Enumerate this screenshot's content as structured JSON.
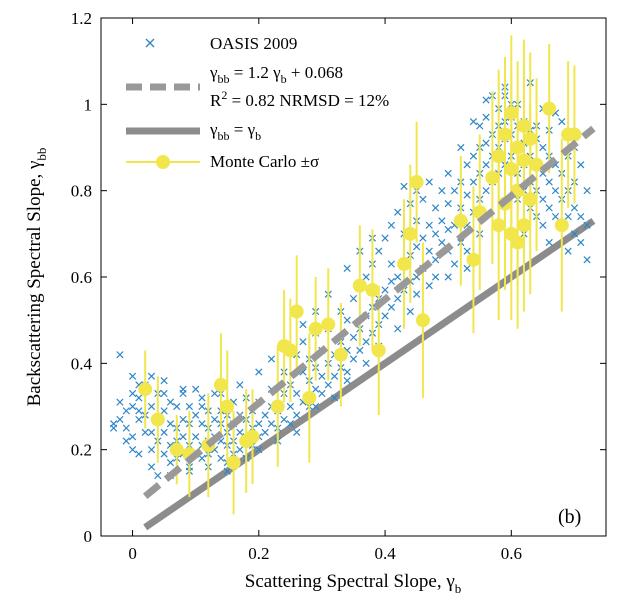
{
  "chart_data": {
    "type": "scatter",
    "panel_label": "(b)",
    "xlabel": {
      "main": "Scattering Spectral Slope, γ",
      "sub": "b"
    },
    "ylabel": {
      "main": "Backscattering Spectral Slope, γ",
      "sub": "bb"
    },
    "xlim": [
      -0.05,
      0.75
    ],
    "ylim": [
      0,
      1.2
    ],
    "xticks": [
      0,
      0.2,
      0.4,
      0.6
    ],
    "xtick_labels": [
      "0",
      "0.2",
      "0.4",
      "0.6"
    ],
    "yticks": [
      0,
      0.2,
      0.4,
      0.6,
      0.8,
      1.0,
      1.2
    ],
    "ytick_labels": [
      "0",
      "0.2",
      "0.4",
      "0.6",
      "0.8",
      "1",
      "1.2"
    ],
    "grid": false,
    "legend_position": "top-left",
    "colors": {
      "oasis": "#2e86c8",
      "fit": "#999999",
      "one_to_one": "#8c8c8c",
      "monte_carlo": "#f2e64d"
    },
    "legend": {
      "oasis": "OASIS 2009",
      "fit_1": "γ",
      "fit_1_sub": "bb",
      "fit_2": " = 1.2 γ",
      "fit_2_sub": "b",
      "fit_3": " + 0.068",
      "r2_1": "R",
      "r2_sup": "2",
      "r2_2": " = 0.82 NRMSD = 12%",
      "one_1": "γ",
      "one_1_sub": "bb",
      "one_2": " = γ",
      "one_2_sub": "b",
      "mc": "Monte Carlo ±σ"
    },
    "fit_line": {
      "slope": 1.2,
      "intercept": 0.068,
      "x": [
        0.02,
        0.73
      ]
    },
    "one_to_one": {
      "x": [
        0.02,
        0.73
      ]
    },
    "oasis_points": [
      [
        -0.03,
        0.26
      ],
      [
        -0.02,
        0.31
      ],
      [
        -0.01,
        0.29
      ],
      [
        -0.02,
        0.42
      ],
      [
        -0.01,
        0.25
      ],
      [
        0.0,
        0.37
      ],
      [
        0.0,
        0.3
      ],
      [
        0.01,
        0.27
      ],
      [
        0.0,
        0.23
      ],
      [
        0.01,
        0.35
      ],
      [
        -0.02,
        0.27
      ],
      [
        -0.01,
        0.22
      ],
      [
        0.0,
        0.33
      ],
      [
        0.01,
        0.29
      ],
      [
        0.0,
        0.2
      ],
      [
        0.02,
        0.28
      ],
      [
        0.01,
        0.32
      ],
      [
        -0.03,
        0.25
      ],
      [
        0.02,
        0.24
      ],
      [
        0.01,
        0.19
      ],
      [
        0.02,
        0.35
      ],
      [
        0.03,
        0.3
      ],
      [
        0.03,
        0.24
      ],
      [
        0.03,
        0.2
      ],
      [
        0.03,
        0.16
      ],
      [
        0.04,
        0.27
      ],
      [
        0.04,
        0.22
      ],
      [
        0.04,
        0.33
      ],
      [
        0.04,
        0.14
      ],
      [
        0.05,
        0.29
      ],
      [
        0.05,
        0.24
      ],
      [
        0.05,
        0.19
      ],
      [
        0.05,
        0.36
      ],
      [
        0.06,
        0.26
      ],
      [
        0.06,
        0.31
      ],
      [
        0.06,
        0.21
      ],
      [
        0.06,
        0.17
      ],
      [
        0.07,
        0.25
      ],
      [
        0.07,
        0.3
      ],
      [
        0.07,
        0.22
      ],
      [
        0.07,
        0.18
      ],
      [
        0.08,
        0.27
      ],
      [
        0.08,
        0.23
      ],
      [
        0.08,
        0.33
      ],
      [
        0.08,
        0.19
      ],
      [
        0.09,
        0.26
      ],
      [
        0.09,
        0.21
      ],
      [
        0.09,
        0.3
      ],
      [
        0.09,
        0.16
      ],
      [
        0.1,
        0.28
      ],
      [
        0.1,
        0.23
      ],
      [
        0.1,
        0.19
      ],
      [
        0.1,
        0.34
      ],
      [
        0.11,
        0.26
      ],
      [
        0.11,
        0.21
      ],
      [
        0.11,
        0.3
      ],
      [
        0.11,
        0.18
      ],
      [
        0.12,
        0.25
      ],
      [
        0.12,
        0.22
      ],
      [
        0.12,
        0.29
      ],
      [
        0.12,
        0.19
      ],
      [
        0.13,
        0.27
      ],
      [
        0.13,
        0.23
      ],
      [
        0.13,
        0.2
      ],
      [
        0.13,
        0.33
      ],
      [
        0.14,
        0.26
      ],
      [
        0.14,
        0.22
      ],
      [
        0.14,
        0.29
      ],
      [
        0.14,
        0.18
      ],
      [
        0.15,
        0.24
      ],
      [
        0.15,
        0.21
      ],
      [
        0.15,
        0.28
      ],
      [
        0.15,
        0.17
      ],
      [
        0.16,
        0.26
      ],
      [
        0.16,
        0.22
      ],
      [
        0.16,
        0.31
      ],
      [
        0.16,
        0.19
      ],
      [
        0.17,
        0.24
      ],
      [
        0.17,
        0.28
      ],
      [
        0.17,
        0.2
      ],
      [
        0.18,
        0.27
      ],
      [
        0.18,
        0.23
      ],
      [
        0.18,
        0.32
      ],
      [
        0.19,
        0.25
      ],
      [
        0.19,
        0.21
      ],
      [
        0.19,
        0.29
      ],
      [
        0.2,
        0.26
      ],
      [
        0.2,
        0.23
      ],
      [
        0.2,
        0.31
      ],
      [
        0.21,
        0.28
      ],
      [
        0.21,
        0.24
      ],
      [
        0.22,
        0.3
      ],
      [
        0.22,
        0.26
      ],
      [
        0.22,
        0.34
      ],
      [
        0.23,
        0.29
      ],
      [
        0.23,
        0.25
      ],
      [
        0.24,
        0.33
      ],
      [
        0.24,
        0.27
      ],
      [
        0.24,
        0.38
      ],
      [
        0.25,
        0.3
      ],
      [
        0.25,
        0.35
      ],
      [
        0.25,
        0.26
      ],
      [
        0.26,
        0.42
      ],
      [
        0.26,
        0.33
      ],
      [
        0.26,
        0.28
      ],
      [
        0.27,
        0.38
      ],
      [
        0.27,
        0.31
      ],
      [
        0.27,
        0.45
      ],
      [
        0.28,
        0.36
      ],
      [
        0.28,
        0.3
      ],
      [
        0.28,
        0.41
      ],
      [
        0.29,
        0.34
      ],
      [
        0.29,
        0.39
      ],
      [
        0.29,
        0.47
      ],
      [
        0.3,
        0.37
      ],
      [
        0.3,
        0.43
      ],
      [
        0.3,
        0.33
      ],
      [
        0.31,
        0.4
      ],
      [
        0.31,
        0.35
      ],
      [
        0.31,
        0.48
      ],
      [
        0.32,
        0.42
      ],
      [
        0.32,
        0.37
      ],
      [
        0.33,
        0.45
      ],
      [
        0.33,
        0.39
      ],
      [
        0.33,
        0.52
      ],
      [
        0.34,
        0.43
      ],
      [
        0.34,
        0.38
      ],
      [
        0.34,
        0.5
      ],
      [
        0.35,
        0.46
      ],
      [
        0.35,
        0.41
      ],
      [
        0.35,
        0.55
      ],
      [
        0.36,
        0.48
      ],
      [
        0.36,
        0.43
      ],
      [
        0.36,
        0.58
      ],
      [
        0.37,
        0.51
      ],
      [
        0.37,
        0.45
      ],
      [
        0.37,
        0.6
      ],
      [
        0.38,
        0.53
      ],
      [
        0.38,
        0.47
      ],
      [
        0.38,
        0.63
      ],
      [
        0.39,
        0.55
      ],
      [
        0.39,
        0.49
      ],
      [
        0.39,
        0.66
      ],
      [
        0.4,
        0.57
      ],
      [
        0.4,
        0.51
      ],
      [
        0.4,
        0.69
      ],
      [
        0.41,
        0.59
      ],
      [
        0.41,
        0.53
      ],
      [
        0.41,
        0.72
      ],
      [
        0.42,
        0.6
      ],
      [
        0.42,
        0.55
      ],
      [
        0.42,
        0.75
      ],
      [
        0.43,
        0.63
      ],
      [
        0.43,
        0.57
      ],
      [
        0.43,
        0.7
      ],
      [
        0.44,
        0.65
      ],
      [
        0.44,
        0.59
      ],
      [
        0.44,
        0.77
      ],
      [
        0.45,
        0.67
      ],
      [
        0.45,
        0.6
      ],
      [
        0.45,
        0.73
      ],
      [
        0.46,
        0.69
      ],
      [
        0.46,
        0.62
      ],
      [
        0.46,
        0.78
      ],
      [
        0.47,
        0.66
      ],
      [
        0.47,
        0.72
      ],
      [
        0.48,
        0.7
      ],
      [
        0.48,
        0.64
      ],
      [
        0.48,
        0.76
      ],
      [
        0.49,
        0.68
      ],
      [
        0.49,
        0.73
      ],
      [
        0.5,
        0.71
      ],
      [
        0.5,
        0.66
      ],
      [
        0.5,
        0.77
      ],
      [
        0.51,
        0.8
      ],
      [
        0.51,
        0.72
      ],
      [
        0.52,
        0.82
      ],
      [
        0.52,
        0.76
      ],
      [
        0.52,
        0.68
      ],
      [
        0.53,
        0.86
      ],
      [
        0.53,
        0.79
      ],
      [
        0.53,
        0.72
      ],
      [
        0.54,
        0.88
      ],
      [
        0.54,
        0.82
      ],
      [
        0.54,
        0.75
      ],
      [
        0.55,
        0.9
      ],
      [
        0.55,
        0.84
      ],
      [
        0.55,
        0.78
      ],
      [
        0.55,
        0.95
      ],
      [
        0.56,
        0.91
      ],
      [
        0.56,
        0.86
      ],
      [
        0.56,
        0.8
      ],
      [
        0.56,
        0.97
      ],
      [
        0.57,
        0.93
      ],
      [
        0.57,
        0.88
      ],
      [
        0.57,
        0.82
      ],
      [
        0.57,
        1.02
      ],
      [
        0.58,
        0.95
      ],
      [
        0.58,
        0.9
      ],
      [
        0.58,
        0.84
      ],
      [
        0.58,
        0.99
      ],
      [
        0.59,
        0.96
      ],
      [
        0.59,
        0.92
      ],
      [
        0.59,
        0.86
      ],
      [
        0.59,
        1.04
      ],
      [
        0.6,
        0.97
      ],
      [
        0.6,
        0.93
      ],
      [
        0.6,
        0.88
      ],
      [
        0.6,
        1.0
      ],
      [
        0.61,
        0.95
      ],
      [
        0.61,
        0.9
      ],
      [
        0.61,
        0.84
      ],
      [
        0.61,
        0.78
      ],
      [
        0.62,
        0.96
      ],
      [
        0.62,
        0.91
      ],
      [
        0.62,
        0.86
      ],
      [
        0.62,
        0.8
      ],
      [
        0.63,
        0.94
      ],
      [
        0.63,
        0.88
      ],
      [
        0.63,
        0.82
      ],
      [
        0.63,
        0.76
      ],
      [
        0.64,
        0.92
      ],
      [
        0.64,
        0.86
      ],
      [
        0.64,
        0.8
      ],
      [
        0.64,
        0.74
      ],
      [
        0.65,
        0.9
      ],
      [
        0.65,
        0.84
      ],
      [
        0.65,
        0.78
      ],
      [
        0.65,
        0.72
      ],
      [
        0.66,
        0.88
      ],
      [
        0.66,
        0.82
      ],
      [
        0.66,
        0.76
      ],
      [
        0.67,
        0.86
      ],
      [
        0.67,
        0.8
      ],
      [
        0.67,
        0.74
      ],
      [
        0.68,
        0.84
      ],
      [
        0.68,
        0.78
      ],
      [
        0.68,
        0.72
      ],
      [
        0.69,
        0.8
      ],
      [
        0.69,
        0.74
      ],
      [
        0.7,
        0.76
      ],
      [
        0.7,
        0.7
      ],
      [
        0.71,
        0.74
      ],
      [
        0.71,
        0.68
      ],
      [
        0.72,
        0.64
      ],
      [
        0.72,
        0.72
      ],
      [
        0.69,
        0.66
      ],
      [
        0.7,
        0.82
      ],
      [
        0.66,
        0.68
      ],
      [
        0.62,
        0.7
      ],
      [
        0.58,
        0.72
      ],
      [
        0.55,
        0.7
      ],
      [
        0.53,
        0.66
      ],
      [
        0.5,
        0.6
      ],
      [
        0.47,
        0.58
      ],
      [
        0.44,
        0.52
      ],
      [
        0.42,
        0.48
      ],
      [
        0.39,
        0.44
      ],
      [
        0.37,
        0.4
      ],
      [
        0.34,
        0.36
      ],
      [
        0.32,
        0.32
      ],
      [
        0.29,
        0.3
      ],
      [
        0.26,
        0.24
      ],
      [
        0.23,
        0.22
      ],
      [
        0.2,
        0.2
      ],
      [
        0.18,
        0.18
      ],
      [
        0.15,
        0.15
      ],
      [
        0.12,
        0.16
      ],
      [
        0.09,
        0.15
      ],
      [
        0.06,
        0.14
      ],
      [
        0.43,
        0.81
      ],
      [
        0.45,
        0.8
      ],
      [
        0.47,
        0.82
      ],
      [
        0.49,
        0.8
      ],
      [
        0.5,
        0.84
      ],
      [
        0.52,
        0.9
      ],
      [
        0.54,
        0.96
      ],
      [
        0.56,
        1.01
      ],
      [
        0.59,
        1.02
      ],
      [
        0.61,
        1.0
      ],
      [
        0.38,
        0.69
      ],
      [
        0.36,
        0.66
      ],
      [
        0.34,
        0.62
      ],
      [
        0.31,
        0.56
      ],
      [
        0.29,
        0.52
      ],
      [
        0.27,
        0.49
      ],
      [
        0.24,
        0.44
      ],
      [
        0.22,
        0.41
      ],
      [
        0.2,
        0.38
      ],
      [
        0.17,
        0.35
      ],
      [
        0.14,
        0.33
      ],
      [
        0.11,
        0.32
      ],
      [
        0.08,
        0.34
      ],
      [
        0.05,
        0.33
      ],
      [
        0.03,
        0.37
      ],
      [
        0.45,
        0.56
      ],
      [
        0.48,
        0.6
      ],
      [
        0.51,
        0.63
      ],
      [
        0.53,
        0.62
      ],
      [
        0.41,
        0.63
      ],
      [
        0.64,
        0.95
      ],
      [
        0.66,
        0.94
      ],
      [
        0.68,
        0.96
      ],
      [
        0.7,
        0.9
      ],
      [
        0.71,
        0.86
      ],
      [
        0.72,
        0.8
      ],
      [
        0.69,
        0.88
      ],
      [
        0.67,
        0.98
      ],
      [
        0.65,
        0.99
      ],
      [
        0.63,
        1.05
      ]
    ],
    "monte_carlo": [
      {
        "x": 0.02,
        "y": 0.34,
        "sd": 0.09
      },
      {
        "x": 0.04,
        "y": 0.27,
        "sd": 0.1
      },
      {
        "x": 0.07,
        "y": 0.2,
        "sd": 0.08
      },
      {
        "x": 0.09,
        "y": 0.19,
        "sd": 0.1
      },
      {
        "x": 0.12,
        "y": 0.21,
        "sd": 0.12
      },
      {
        "x": 0.14,
        "y": 0.35,
        "sd": 0.12
      },
      {
        "x": 0.15,
        "y": 0.3,
        "sd": 0.13
      },
      {
        "x": 0.16,
        "y": 0.17,
        "sd": 0.12
      },
      {
        "x": 0.18,
        "y": 0.22,
        "sd": 0.12
      },
      {
        "x": 0.19,
        "y": 0.23,
        "sd": 0.11
      },
      {
        "x": 0.23,
        "y": 0.3,
        "sd": 0.14
      },
      {
        "x": 0.24,
        "y": 0.44,
        "sd": 0.13
      },
      {
        "x": 0.25,
        "y": 0.43,
        "sd": 0.12
      },
      {
        "x": 0.26,
        "y": 0.52,
        "sd": 0.13
      },
      {
        "x": 0.28,
        "y": 0.32,
        "sd": 0.15
      },
      {
        "x": 0.29,
        "y": 0.48,
        "sd": 0.12
      },
      {
        "x": 0.31,
        "y": 0.49,
        "sd": 0.13
      },
      {
        "x": 0.33,
        "y": 0.42,
        "sd": 0.12
      },
      {
        "x": 0.36,
        "y": 0.58,
        "sd": 0.14
      },
      {
        "x": 0.38,
        "y": 0.57,
        "sd": 0.14
      },
      {
        "x": 0.39,
        "y": 0.43,
        "sd": 0.15
      },
      {
        "x": 0.43,
        "y": 0.63,
        "sd": 0.15
      },
      {
        "x": 0.44,
        "y": 0.7,
        "sd": 0.16
      },
      {
        "x": 0.45,
        "y": 0.82,
        "sd": 0.14
      },
      {
        "x": 0.46,
        "y": 0.5,
        "sd": 0.18
      },
      {
        "x": 0.52,
        "y": 0.73,
        "sd": 0.15
      },
      {
        "x": 0.54,
        "y": 0.64,
        "sd": 0.17
      },
      {
        "x": 0.55,
        "y": 0.75,
        "sd": 0.18
      },
      {
        "x": 0.57,
        "y": 0.83,
        "sd": 0.2
      },
      {
        "x": 0.58,
        "y": 0.88,
        "sd": 0.2
      },
      {
        "x": 0.58,
        "y": 0.72,
        "sd": 0.22
      },
      {
        "x": 0.59,
        "y": 0.93,
        "sd": 0.18
      },
      {
        "x": 0.59,
        "y": 0.77,
        "sd": 0.2
      },
      {
        "x": 0.6,
        "y": 0.98,
        "sd": 0.18
      },
      {
        "x": 0.6,
        "y": 0.85,
        "sd": 0.22
      },
      {
        "x": 0.6,
        "y": 0.7,
        "sd": 0.2
      },
      {
        "x": 0.61,
        "y": 0.9,
        "sd": 0.2
      },
      {
        "x": 0.61,
        "y": 0.8,
        "sd": 0.22
      },
      {
        "x": 0.61,
        "y": 0.68,
        "sd": 0.2
      },
      {
        "x": 0.62,
        "y": 0.95,
        "sd": 0.2
      },
      {
        "x": 0.62,
        "y": 0.87,
        "sd": 0.22
      },
      {
        "x": 0.62,
        "y": 0.72,
        "sd": 0.2
      },
      {
        "x": 0.63,
        "y": 0.92,
        "sd": 0.2
      },
      {
        "x": 0.63,
        "y": 0.78,
        "sd": 0.22
      },
      {
        "x": 0.64,
        "y": 0.86,
        "sd": 0.2
      },
      {
        "x": 0.66,
        "y": 0.99,
        "sd": 0.15
      },
      {
        "x": 0.68,
        "y": 0.72,
        "sd": 0.2
      },
      {
        "x": 0.69,
        "y": 0.93,
        "sd": 0.17
      },
      {
        "x": 0.7,
        "y": 0.93,
        "sd": 0.16
      }
    ]
  }
}
